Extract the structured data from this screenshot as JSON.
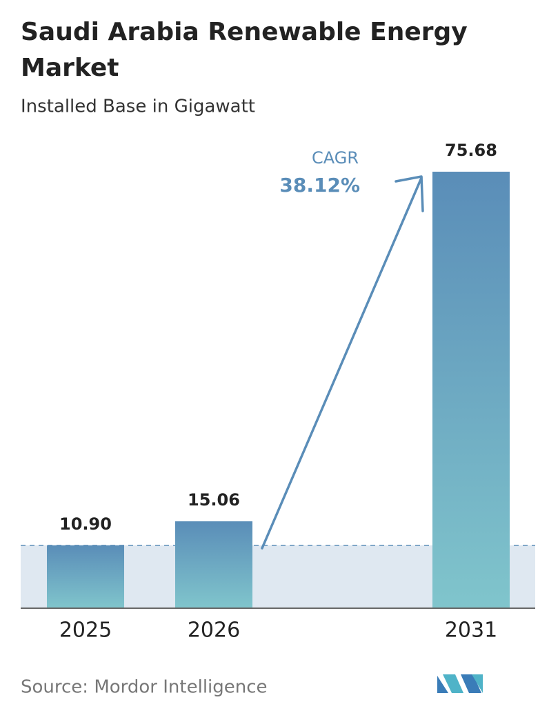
{
  "chart_data": {
    "type": "bar",
    "title": [
      "Saudi Arabia Renewable Energy",
      "Market"
    ],
    "subtitle": "Installed Base in Gigawatt",
    "categories": [
      "2025",
      "2026",
      "2031"
    ],
    "values": [
      10.9,
      15.06,
      75.68
    ],
    "value_labels": [
      "10.90",
      "15.06",
      "75.68"
    ],
    "colors": [
      "#5a8db8",
      "#80c5cc"
    ],
    "annotation": {
      "label": "CAGR",
      "value": "38.12%"
    },
    "source": "Source: Mordor Intelligence"
  }
}
